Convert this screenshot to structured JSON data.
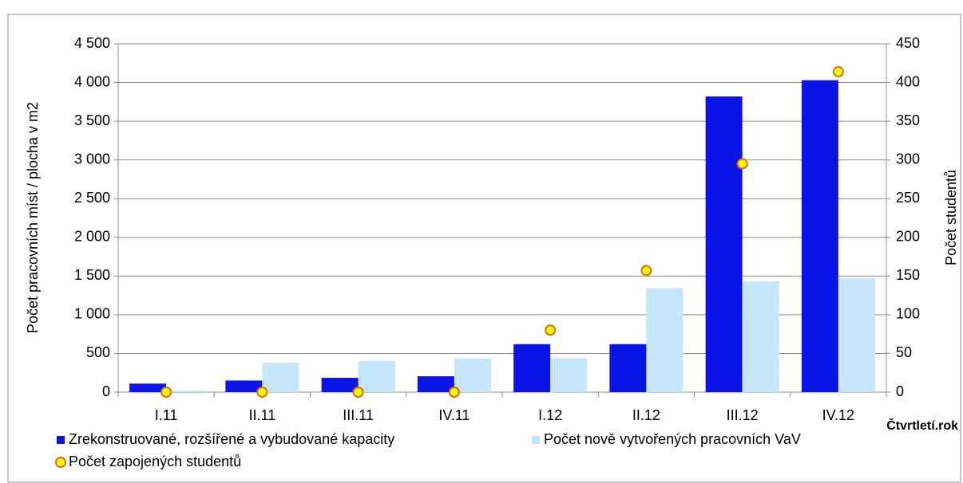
{
  "chart_data": {
    "type": "bar",
    "y_label": "Počet pracovních míst / plocha v m2",
    "y2_label": "Počet studentů",
    "x_label": "Čtvrtletí.rok",
    "categories": [
      "I.11",
      "II.11",
      "III.11",
      "IV.11",
      "I.12",
      "II.12",
      "III.12",
      "IV.12"
    ],
    "series": [
      {
        "name": "Zrekonstruované, rozšířené a vybudované kapacity",
        "color": "#0a14e6",
        "type": "bar",
        "values": [
          110,
          150,
          185,
          205,
          620,
          620,
          3820,
          4030
        ]
      },
      {
        "name": "Počet nově vytvořených pracovních VaV",
        "color": "#c6e7fb",
        "type": "bar",
        "values": [
          20,
          380,
          405,
          435,
          440,
          1345,
          1430,
          1470
        ]
      },
      {
        "name": "Počet zapojených studentů",
        "color": "#ffff00",
        "edge_color": "#e36c09",
        "type": "scatter",
        "axis": "y2",
        "values": [
          0,
          0,
          0,
          0,
          80,
          157,
          295,
          414
        ]
      }
    ],
    "ylim": [
      0,
      4500
    ],
    "yticks": [
      0,
      500,
      {
        "value": 1000,
        "label": "1 000"
      },
      {
        "value": 1500,
        "label": "1 500"
      },
      {
        "value": 2000,
        "label": "2 000"
      },
      {
        "value": 2500,
        "label": "2 500"
      },
      {
        "value": 3000,
        "label": "3 000"
      },
      {
        "value": 3500,
        "label": "3 500"
      },
      {
        "value": 4000,
        "label": "4 000"
      },
      {
        "value": 4500,
        "label": "4 500"
      }
    ],
    "y2lim": [
      0,
      450
    ],
    "y2ticks": [
      0,
      50,
      100,
      150,
      200,
      250,
      300,
      350,
      400,
      450
    ],
    "grid": true
  }
}
